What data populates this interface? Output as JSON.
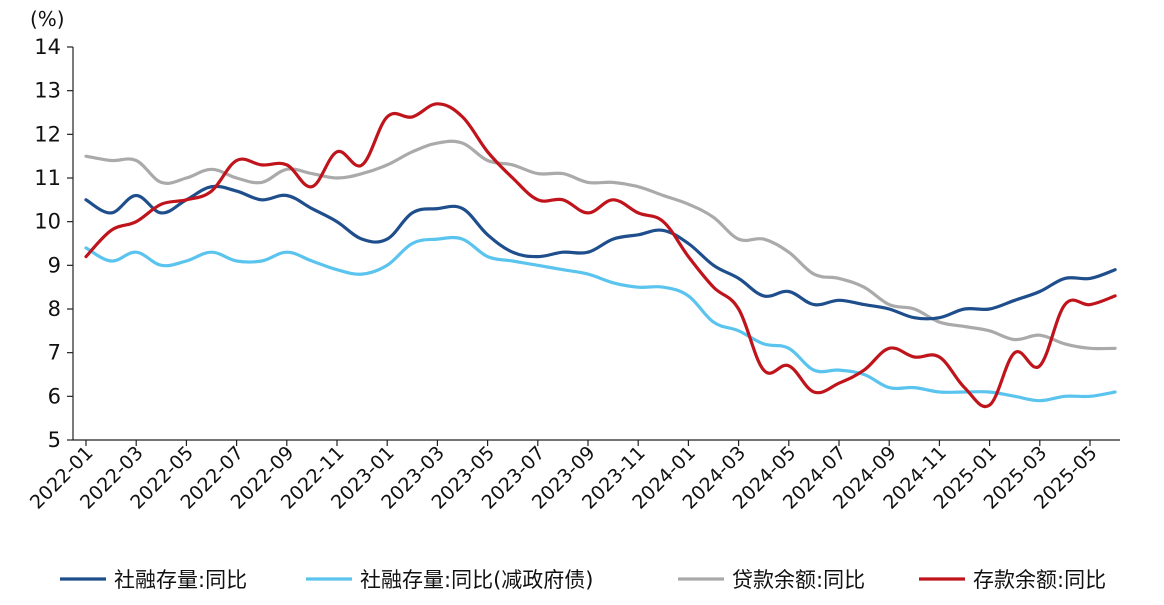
{
  "chart_data": {
    "type": "line",
    "title": "",
    "xlabel": "",
    "ylabel": "(%)",
    "ylim": [
      5,
      14
    ],
    "yticks": [
      "5",
      "6",
      "7",
      "8",
      "9",
      "10",
      "11",
      "12",
      "13",
      "14"
    ],
    "grid": false,
    "legend_position": "bottom",
    "x": [
      "2022-01",
      "2022-02",
      "2022-03",
      "2022-04",
      "2022-05",
      "2022-06",
      "2022-07",
      "2022-08",
      "2022-09",
      "2022-10",
      "2022-11",
      "2022-12",
      "2023-01",
      "2023-02",
      "2023-03",
      "2023-04",
      "2023-05",
      "2023-06",
      "2023-07",
      "2023-08",
      "2023-09",
      "2023-10",
      "2023-11",
      "2023-12",
      "2024-01",
      "2024-02",
      "2024-03",
      "2024-04",
      "2024-05",
      "2024-06",
      "2024-07",
      "2024-08",
      "2024-09",
      "2024-10",
      "2024-11",
      "2024-12",
      "2025-01",
      "2025-02",
      "2025-03",
      "2025-04",
      "2025-05",
      "2025-06"
    ],
    "xtick_labels": [
      "2022-01",
      "2022-03",
      "2022-05",
      "2022-07",
      "2022-09",
      "2022-11",
      "2023-01",
      "2023-03",
      "2023-05",
      "2023-07",
      "2023-09",
      "2023-11",
      "2024-01",
      "2024-03",
      "2024-05",
      "2024-07",
      "2024-09",
      "2024-11",
      "2025-01",
      "2025-03",
      "2025-05"
    ],
    "series": [
      {
        "name": "社融存量:同比",
        "color": "#1f4e8c",
        "values": [
          10.5,
          10.2,
          10.6,
          10.2,
          10.5,
          10.8,
          10.7,
          10.5,
          10.6,
          10.3,
          10.0,
          9.6,
          9.6,
          10.2,
          10.3,
          10.3,
          9.7,
          9.3,
          9.2,
          9.3,
          9.3,
          9.6,
          9.7,
          9.8,
          9.5,
          9.0,
          8.7,
          8.3,
          8.4,
          8.1,
          8.2,
          8.1,
          8.0,
          7.8,
          7.8,
          8.0,
          8.0,
          8.2,
          8.4,
          8.7,
          8.7,
          8.9
        ]
      },
      {
        "name": "社融存量:同比(减政府债)",
        "color": "#5bc4ee",
        "values": [
          9.4,
          9.1,
          9.3,
          9.0,
          9.1,
          9.3,
          9.1,
          9.1,
          9.3,
          9.1,
          8.9,
          8.8,
          9.0,
          9.5,
          9.6,
          9.6,
          9.2,
          9.1,
          9.0,
          8.9,
          8.8,
          8.6,
          8.5,
          8.5,
          8.3,
          7.7,
          7.5,
          7.2,
          7.1,
          6.6,
          6.6,
          6.5,
          6.2,
          6.2,
          6.1,
          6.1,
          6.1,
          6.0,
          5.9,
          6.0,
          6.0,
          6.1
        ]
      },
      {
        "name": "贷款余额:同比",
        "color": "#aaaaaa",
        "values": [
          11.5,
          11.4,
          11.4,
          10.9,
          11.0,
          11.2,
          11.0,
          10.9,
          11.2,
          11.1,
          11.0,
          11.1,
          11.3,
          11.6,
          11.8,
          11.8,
          11.4,
          11.3,
          11.1,
          11.1,
          10.9,
          10.9,
          10.8,
          10.6,
          10.4,
          10.1,
          9.6,
          9.6,
          9.3,
          8.8,
          8.7,
          8.5,
          8.1,
          8.0,
          7.7,
          7.6,
          7.5,
          7.3,
          7.4,
          7.2,
          7.1,
          7.1
        ]
      },
      {
        "name": "存款余额:同比",
        "color": "#c0141c",
        "values": [
          9.2,
          9.8,
          10.0,
          10.4,
          10.5,
          10.7,
          11.4,
          11.3,
          11.3,
          10.8,
          11.6,
          11.3,
          12.4,
          12.4,
          12.7,
          12.4,
          11.6,
          11.0,
          10.5,
          10.5,
          10.2,
          10.5,
          10.2,
          10.0,
          9.2,
          8.5,
          8.0,
          6.6,
          6.7,
          6.1,
          6.3,
          6.6,
          7.1,
          6.9,
          6.9,
          6.2,
          5.8,
          7.0,
          6.7,
          8.1,
          8.1,
          8.3
        ]
      }
    ]
  }
}
